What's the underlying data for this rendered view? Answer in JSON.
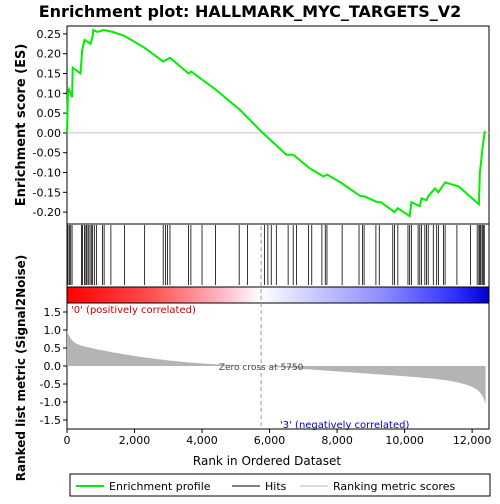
{
  "chart_data": {
    "type": "line",
    "title": "Enrichment plot: HALLMARK_MYC_TARGETS_V2",
    "xlabel": "Rank in Ordered Dataset",
    "ylabel_top": "Enrichment score (ES)",
    "ylabel_bottom": "Ranked list metric (Signal2Noise)",
    "x_range": [
      0,
      12500
    ],
    "x_ticks": [
      0,
      2000,
      4000,
      6000,
      8000,
      10000,
      12000
    ],
    "x_tick_labels": [
      "0",
      "2,000",
      "4,000",
      "6,000",
      "8,000",
      "10,000",
      "12,000"
    ],
    "es_ylim": [
      -0.23,
      0.27
    ],
    "es_ticks": [
      0.25,
      0.2,
      0.15,
      0.1,
      0.05,
      0.0,
      -0.05,
      -0.1,
      -0.15,
      -0.2
    ],
    "es_tick_labels": [
      "0.25",
      "0.20",
      "0.15",
      "0.10",
      "0.05",
      "0.00",
      "-0.05",
      "-0.10",
      "-0.15",
      "-0.20"
    ],
    "metric_ylim": [
      -1.75,
      1.75
    ],
    "metric_ticks": [
      1.5,
      1.0,
      0.5,
      0.0,
      -0.5,
      -1.0,
      -1.5
    ],
    "metric_tick_labels": [
      "1.5",
      "1.0",
      "0.5",
      "0.0",
      "-0.5",
      "-1.0",
      "-1.5"
    ],
    "zero_cross": 5750,
    "zero_cross_label": "Zero cross at 5750",
    "pos_label": "'0' (positively correlated)",
    "neg_label": "'3' (negatively correlated)",
    "grid": false,
    "legend_position": "bottom",
    "legend": [
      "Enrichment profile",
      "Hits",
      "Ranking metric scores"
    ],
    "colors": {
      "es_line": "#00ee00",
      "hits": "#000000",
      "metric_fill": "#b4b4b4",
      "pos_text": "#cc0000",
      "neg_text": "#0000cc"
    },
    "es_profile": {
      "x": [
        0,
        30,
        60,
        150,
        170,
        400,
        450,
        520,
        700,
        760,
        780,
        900,
        1080,
        1350,
        1700,
        2300,
        2850,
        2950,
        3050,
        3600,
        3680,
        4000,
        4400,
        5100,
        5800,
        6500,
        6700,
        7200,
        7400,
        7600,
        7700,
        8100,
        8700,
        8800,
        9200,
        9300,
        9700,
        9800,
        10150,
        10200,
        10450,
        10500,
        10650,
        10700,
        10900,
        11000,
        11200,
        11600,
        12200,
        12230,
        12320,
        12380
      ],
      "y": [
        0.0,
        0.1,
        0.11,
        0.09,
        0.165,
        0.15,
        0.21,
        0.235,
        0.225,
        0.245,
        0.26,
        0.255,
        0.26,
        0.255,
        0.245,
        0.215,
        0.18,
        0.185,
        0.19,
        0.15,
        0.155,
        0.135,
        0.11,
        0.06,
        0.0,
        -0.055,
        -0.055,
        -0.09,
        -0.1,
        -0.11,
        -0.105,
        -0.125,
        -0.16,
        -0.16,
        -0.175,
        -0.175,
        -0.2,
        -0.19,
        -0.21,
        -0.175,
        -0.185,
        -0.165,
        -0.17,
        -0.16,
        -0.14,
        -0.15,
        -0.125,
        -0.135,
        -0.18,
        -0.1,
        -0.03,
        0.005
      ]
    },
    "hit_positions": [
      30,
      70,
      110,
      150,
      430,
      460,
      520,
      560,
      590,
      630,
      680,
      720,
      760,
      810,
      870,
      1050,
      1100,
      1300,
      1700,
      2300,
      2850,
      2920,
      2980,
      3050,
      3600,
      3670,
      4000,
      4400,
      5100,
      5350,
      5850,
      5950,
      6050,
      6200,
      6550,
      6700,
      6800,
      7150,
      7250,
      7550,
      7650,
      7700,
      8150,
      8650,
      8750,
      8800,
      9150,
      9250,
      9650,
      9700,
      9800,
      10100,
      10150,
      10200,
      10400,
      10450,
      10500,
      10600,
      10650,
      10700,
      10850,
      10950,
      11000,
      11150,
      11200,
      11550,
      11950,
      12150,
      12200,
      12230,
      12260,
      12300,
      12330,
      12360
    ]
  }
}
